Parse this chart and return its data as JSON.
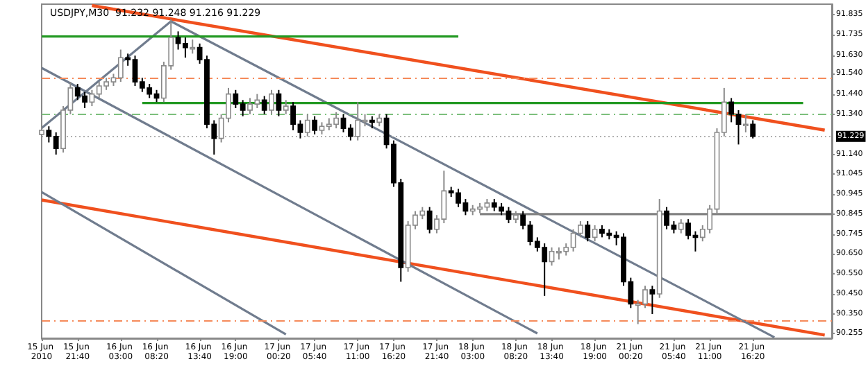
{
  "chart_data": {
    "type": "candlestick",
    "title": "USDJPY,M30  91.232 91.248 91.216 91.229",
    "categories": [
      "15 Jun 2010",
      null,
      null,
      null,
      null,
      "15 Jun 21:40",
      null,
      null,
      null,
      null,
      null,
      "16 Jun 03:00",
      null,
      null,
      null,
      null,
      "16 Jun 08:20",
      null,
      null,
      null,
      null,
      null,
      "16 Jun 13:40",
      null,
      null,
      null,
      null,
      "16 Jun 19:00",
      null,
      null,
      null,
      null,
      null,
      "17 Jun 00:20",
      null,
      null,
      null,
      null,
      "17 Jun 05:40",
      null,
      null,
      null,
      null,
      null,
      "17 Jun 11:00",
      null,
      null,
      null,
      null,
      "17 Jun 16:20",
      null,
      null,
      null,
      null,
      null,
      "17 Jun 21:40",
      null,
      null,
      null,
      null,
      "18 Jun 03:00",
      null,
      null,
      null,
      null,
      null,
      "18 Jun 08:20",
      null,
      null,
      null,
      null,
      "18 Jun 13:40",
      null,
      null,
      null,
      null,
      null,
      "18 Jun 19:00",
      null,
      null,
      null,
      null,
      "21 Jun 00:20",
      null,
      null,
      null,
      null,
      null,
      "21 Jun 05:40",
      null,
      null,
      null,
      null,
      "21 Jun 11:00",
      null,
      null,
      null,
      null,
      null,
      "21 Jun 16:20",
      null,
      null,
      null,
      null,
      null,
      null,
      null,
      null,
      null,
      null,
      null
    ],
    "ohlc": [
      [
        91.24,
        91.28,
        91.22,
        91.26
      ],
      [
        91.26,
        91.28,
        91.2,
        91.23
      ],
      [
        91.23,
        91.25,
        91.14,
        91.17
      ],
      [
        91.17,
        91.38,
        91.15,
        91.36
      ],
      [
        91.36,
        91.5,
        91.34,
        91.47
      ],
      [
        91.47,
        91.49,
        91.41,
        91.43
      ],
      [
        91.43,
        91.45,
        91.37,
        91.4
      ],
      [
        91.4,
        91.46,
        91.38,
        91.44
      ],
      [
        91.44,
        91.5,
        91.42,
        91.48
      ],
      [
        91.48,
        91.52,
        91.46,
        91.5
      ],
      [
        91.5,
        91.54,
        91.48,
        91.52
      ],
      [
        91.52,
        91.66,
        91.5,
        91.62
      ],
      [
        91.62,
        91.64,
        91.58,
        91.61
      ],
      [
        91.61,
        91.63,
        91.48,
        91.5
      ],
      [
        91.5,
        91.52,
        91.45,
        91.47
      ],
      [
        91.47,
        91.49,
        91.42,
        91.44
      ],
      [
        91.44,
        91.46,
        91.4,
        91.42
      ],
      [
        91.42,
        91.6,
        91.4,
        91.58
      ],
      [
        91.58,
        91.81,
        91.56,
        91.72
      ],
      [
        91.72,
        91.75,
        91.66,
        91.69
      ],
      [
        91.69,
        91.72,
        91.62,
        91.67
      ],
      [
        91.67,
        91.71,
        91.64,
        91.67
      ],
      [
        91.67,
        91.69,
        91.59,
        91.61
      ],
      [
        91.61,
        91.63,
        91.27,
        91.29
      ],
      [
        91.29,
        91.31,
        91.14,
        91.22
      ],
      [
        91.22,
        91.34,
        91.2,
        91.32
      ],
      [
        91.32,
        91.47,
        91.3,
        91.44
      ],
      [
        91.44,
        91.46,
        91.37,
        91.39
      ],
      [
        91.39,
        91.41,
        91.33,
        91.36
      ],
      [
        91.36,
        91.42,
        91.34,
        91.39
      ],
      [
        91.39,
        91.44,
        91.37,
        91.41
      ],
      [
        91.41,
        91.43,
        91.34,
        91.36
      ],
      [
        91.36,
        91.46,
        91.34,
        91.44
      ],
      [
        91.44,
        91.46,
        91.33,
        91.36
      ],
      [
        91.36,
        91.41,
        91.34,
        91.38
      ],
      [
        91.38,
        91.4,
        91.26,
        91.29
      ],
      [
        91.29,
        91.31,
        91.22,
        91.25
      ],
      [
        91.25,
        91.34,
        91.23,
        91.31
      ],
      [
        91.31,
        91.33,
        91.24,
        91.26
      ],
      [
        91.26,
        91.3,
        91.24,
        91.28
      ],
      [
        91.28,
        91.32,
        91.26,
        91.29
      ],
      [
        91.29,
        91.35,
        91.27,
        91.32
      ],
      [
        91.32,
        91.34,
        91.25,
        91.27
      ],
      [
        91.27,
        91.29,
        91.21,
        91.23
      ],
      [
        91.23,
        91.4,
        91.21,
        91.31
      ],
      [
        91.31,
        91.34,
        91.28,
        91.31
      ],
      [
        91.31,
        91.33,
        91.27,
        91.3
      ],
      [
        91.3,
        91.34,
        91.28,
        91.32
      ],
      [
        91.32,
        91.34,
        91.17,
        91.19
      ],
      [
        91.19,
        91.21,
        90.98,
        91.0
      ],
      [
        91.0,
        91.02,
        90.51,
        90.58
      ],
      [
        90.58,
        90.81,
        90.56,
        90.79
      ],
      [
        90.79,
        90.86,
        90.77,
        90.84
      ],
      [
        90.84,
        90.88,
        90.82,
        90.86
      ],
      [
        90.86,
        90.88,
        90.75,
        90.77
      ],
      [
        90.77,
        90.84,
        90.75,
        90.82
      ],
      [
        90.82,
        91.06,
        90.8,
        90.96
      ],
      [
        90.96,
        90.98,
        90.93,
        90.95
      ],
      [
        90.95,
        90.97,
        90.88,
        90.9
      ],
      [
        90.9,
        90.92,
        90.84,
        90.86
      ],
      [
        90.86,
        90.89,
        90.84,
        90.87
      ],
      [
        90.87,
        90.9,
        90.85,
        90.88
      ],
      [
        90.88,
        90.92,
        90.86,
        90.9
      ],
      [
        90.9,
        90.92,
        90.86,
        90.88
      ],
      [
        90.88,
        90.9,
        90.84,
        90.86
      ],
      [
        90.86,
        90.88,
        90.8,
        90.82
      ],
      [
        90.82,
        90.86,
        90.8,
        90.84
      ],
      [
        90.84,
        90.86,
        90.77,
        90.79
      ],
      [
        90.79,
        90.81,
        90.69,
        90.71
      ],
      [
        90.71,
        90.73,
        90.66,
        90.68
      ],
      [
        90.68,
        90.7,
        90.44,
        90.61
      ],
      [
        90.61,
        90.68,
        90.59,
        90.66
      ],
      [
        90.66,
        90.68,
        90.62,
        90.66
      ],
      [
        90.66,
        90.7,
        90.64,
        90.68
      ],
      [
        90.68,
        90.77,
        90.66,
        90.75
      ],
      [
        90.75,
        90.81,
        90.73,
        90.79
      ],
      [
        90.79,
        90.81,
        90.71,
        90.73
      ],
      [
        90.73,
        90.79,
        90.71,
        90.77
      ],
      [
        90.77,
        90.79,
        90.73,
        90.75
      ],
      [
        90.75,
        90.77,
        90.72,
        90.74
      ],
      [
        90.74,
        90.76,
        90.69,
        90.73
      ],
      [
        90.73,
        90.75,
        90.49,
        90.51
      ],
      [
        90.51,
        90.53,
        90.38,
        90.4
      ],
      [
        90.4,
        90.42,
        90.3,
        90.4
      ],
      [
        90.4,
        90.49,
        90.38,
        90.47
      ],
      [
        90.47,
        90.49,
        90.35,
        90.45
      ],
      [
        90.45,
        90.92,
        90.43,
        90.86
      ],
      [
        90.86,
        90.88,
        90.77,
        90.79
      ],
      [
        90.79,
        90.81,
        90.75,
        90.77
      ],
      [
        90.77,
        90.82,
        90.75,
        90.8
      ],
      [
        90.8,
        90.82,
        90.72,
        90.74
      ],
      [
        90.74,
        90.76,
        90.66,
        90.73
      ],
      [
        90.73,
        90.79,
        90.71,
        90.77
      ],
      [
        90.77,
        90.89,
        90.75,
        90.87
      ],
      [
        90.87,
        91.27,
        90.85,
        91.25
      ],
      [
        91.25,
        91.47,
        91.23,
        91.4
      ],
      [
        91.4,
        91.42,
        91.3,
        91.34
      ],
      [
        91.34,
        91.36,
        91.19,
        91.29
      ],
      [
        91.29,
        91.34,
        91.25,
        91.29
      ],
      [
        91.29,
        91.31,
        91.22,
        91.23
      ],
      null,
      null,
      null,
      null,
      null,
      null,
      null,
      null,
      null,
      null,
      null
    ],
    "series": [
      {
        "type": "line",
        "color": "#f0501e",
        "values": [
          null,
          null,
          null,
          null,
          null,
          null,
          null,
          91.878,
          null,
          null,
          null,
          null,
          null,
          null,
          null,
          null,
          null,
          null,
          null,
          null,
          null,
          null,
          null,
          null,
          null,
          null,
          null,
          null,
          null,
          null,
          null,
          null,
          null,
          null,
          null,
          null,
          null,
          null,
          null,
          null,
          null,
          null,
          null,
          null,
          null,
          null,
          null,
          null,
          null,
          null,
          null,
          null,
          null,
          null,
          null,
          null,
          null,
          null,
          null,
          null,
          null,
          null,
          null,
          null,
          null,
          null,
          null,
          null,
          null,
          null,
          null,
          null,
          null,
          null,
          null,
          null,
          null,
          null,
          null,
          null,
          null,
          null,
          null,
          null,
          null,
          null,
          null,
          null,
          null,
          null,
          null,
          null,
          null,
          null,
          null,
          null,
          null,
          null,
          null,
          null,
          null,
          null,
          null,
          null,
          null,
          null,
          null,
          null,
          null,
          91.261,
          null
        ]
      },
      {
        "type": "line",
        "color": "#f0501e",
        "values": [
          90.915,
          null,
          null,
          null,
          null,
          null,
          null,
          null,
          null,
          null,
          null,
          null,
          null,
          null,
          null,
          null,
          null,
          null,
          null,
          null,
          null,
          null,
          null,
          null,
          null,
          null,
          null,
          null,
          null,
          null,
          null,
          null,
          null,
          null,
          null,
          null,
          null,
          null,
          null,
          null,
          null,
          null,
          null,
          null,
          null,
          null,
          null,
          null,
          null,
          null,
          null,
          null,
          null,
          null,
          null,
          null,
          null,
          null,
          null,
          null,
          null,
          null,
          null,
          null,
          null,
          null,
          null,
          null,
          null,
          null,
          null,
          null,
          null,
          null,
          null,
          null,
          null,
          null,
          null,
          null,
          null,
          null,
          null,
          null,
          null,
          null,
          null,
          null,
          null,
          null,
          null,
          null,
          null,
          null,
          null,
          null,
          null,
          null,
          null,
          null,
          null,
          null,
          null,
          null,
          null,
          null,
          null,
          null,
          null,
          90.246,
          null
        ]
      },
      {
        "type": "line",
        "color": "#707c8e",
        "values": [
          91.271,
          null,
          null,
          null,
          null,
          null,
          null,
          null,
          null,
          null,
          null,
          null,
          null,
          null,
          null,
          null,
          null,
          null,
          91.8,
          null,
          null,
          null,
          null,
          null,
          null,
          null,
          null,
          null,
          null,
          null,
          null,
          null,
          null,
          null,
          null,
          null,
          null,
          null,
          null,
          null,
          null,
          null,
          null,
          null,
          null,
          null,
          null,
          null,
          null,
          null,
          null,
          null,
          null,
          null,
          null,
          null,
          null,
          null,
          null,
          null,
          null,
          null,
          null,
          null,
          null,
          null,
          null,
          null,
          null,
          null,
          null,
          null,
          null,
          null,
          null,
          null,
          null,
          null,
          null,
          null,
          null,
          null,
          null,
          null,
          null,
          null,
          null,
          null,
          null,
          null,
          null,
          null,
          null,
          null,
          null,
          null,
          null,
          null,
          null,
          null,
          null,
          null,
          null,
          null,
          null,
          null,
          null,
          null,
          null,
          null,
          null
        ]
      },
      {
        "type": "line",
        "color": "#707c8e",
        "values": [
          null,
          null,
          null,
          null,
          null,
          null,
          null,
          null,
          null,
          null,
          null,
          null,
          null,
          null,
          null,
          null,
          null,
          null,
          91.8,
          null,
          null,
          null,
          null,
          null,
          null,
          null,
          null,
          null,
          null,
          null,
          null,
          null,
          null,
          null,
          null,
          null,
          null,
          null,
          null,
          null,
          null,
          null,
          null,
          null,
          null,
          null,
          null,
          null,
          null,
          null,
          null,
          null,
          null,
          null,
          null,
          null,
          null,
          null,
          null,
          null,
          null,
          null,
          null,
          null,
          null,
          null,
          null,
          null,
          null,
          null,
          null,
          null,
          null,
          null,
          null,
          null,
          null,
          null,
          null,
          null,
          null,
          null,
          null,
          null,
          null,
          null,
          null,
          null,
          null,
          null,
          null,
          null,
          null,
          null,
          null,
          null,
          null,
          null,
          null,
          null,
          null,
          null,
          90.235,
          null,
          null,
          null,
          null,
          null,
          null,
          null,
          null
        ]
      },
      {
        "type": "line",
        "color": "#707c8e",
        "values": [
          91.569,
          null,
          null,
          null,
          null,
          null,
          null,
          null,
          null,
          null,
          null,
          null,
          null,
          null,
          null,
          null,
          null,
          null,
          null,
          null,
          null,
          null,
          null,
          null,
          null,
          null,
          null,
          null,
          null,
          null,
          null,
          null,
          null,
          null,
          null,
          null,
          null,
          null,
          null,
          null,
          null,
          null,
          null,
          null,
          null,
          null,
          null,
          null,
          null,
          null,
          null,
          null,
          null,
          null,
          null,
          null,
          null,
          null,
          null,
          null,
          null,
          null,
          null,
          null,
          null,
          null,
          null,
          null,
          null,
          90.254,
          null,
          null,
          null,
          null,
          null,
          null,
          null,
          null,
          null,
          null,
          null,
          null,
          null,
          null,
          null,
          null,
          null,
          null,
          null,
          null,
          null,
          null,
          null,
          null,
          null,
          null,
          null,
          null,
          null,
          null,
          null,
          null,
          null,
          null,
          null,
          null,
          null,
          null,
          null,
          null,
          null
        ]
      },
      {
        "type": "line",
        "color": "#707c8e",
        "values": [
          90.954,
          null,
          null,
          null,
          null,
          null,
          null,
          null,
          null,
          null,
          null,
          null,
          null,
          null,
          null,
          null,
          null,
          null,
          null,
          null,
          null,
          null,
          null,
          null,
          null,
          null,
          null,
          null,
          null,
          null,
          null,
          null,
          null,
          null,
          90.249,
          null,
          null,
          null,
          null,
          null,
          null,
          null,
          null,
          null,
          null,
          null,
          null,
          null,
          null,
          null,
          null,
          null,
          null,
          null,
          null,
          null,
          null,
          null,
          null,
          null,
          null,
          null,
          null,
          null,
          null,
          null,
          null,
          null,
          null,
          null,
          null,
          null,
          null,
          null,
          null,
          null,
          null,
          null,
          null,
          null,
          null,
          null,
          null,
          null,
          null,
          null,
          null,
          null,
          null,
          null,
          null,
          null,
          null,
          null,
          null,
          null,
          null,
          null,
          null,
          null,
          null,
          null,
          null,
          null,
          null,
          null,
          null,
          null,
          null,
          null,
          null
        ]
      },
      {
        "type": "line",
        "color": "#229922",
        "values": [
          91.725,
          null,
          null,
          null,
          null,
          null,
          null,
          null,
          null,
          null,
          null,
          null,
          null,
          null,
          null,
          null,
          null,
          null,
          null,
          null,
          null,
          null,
          null,
          null,
          null,
          null,
          null,
          null,
          null,
          null,
          null,
          null,
          null,
          null,
          null,
          null,
          null,
          null,
          null,
          null,
          null,
          null,
          null,
          null,
          null,
          null,
          null,
          null,
          null,
          null,
          null,
          null,
          null,
          null,
          null,
          null,
          null,
          null,
          91.725,
          null,
          null,
          null,
          null,
          null,
          null,
          null,
          null,
          null,
          null,
          null,
          null,
          null,
          null,
          null,
          null,
          null,
          null,
          null,
          null,
          null,
          null,
          null,
          null,
          null,
          null,
          null,
          null,
          null,
          null,
          null,
          null,
          null,
          null,
          null,
          null,
          null,
          null,
          null,
          null,
          null,
          null,
          null,
          null,
          null,
          null,
          null,
          null,
          null,
          null,
          null,
          null
        ]
      },
      {
        "type": "line",
        "color": "#229922",
        "values": [
          null,
          null,
          null,
          null,
          null,
          null,
          null,
          null,
          null,
          null,
          null,
          null,
          null,
          null,
          91.395,
          null,
          null,
          null,
          null,
          null,
          null,
          null,
          null,
          null,
          null,
          null,
          null,
          null,
          null,
          null,
          null,
          null,
          null,
          null,
          null,
          null,
          null,
          null,
          null,
          null,
          null,
          null,
          null,
          null,
          null,
          null,
          null,
          null,
          null,
          null,
          null,
          null,
          null,
          null,
          null,
          null,
          null,
          null,
          null,
          null,
          null,
          null,
          null,
          null,
          null,
          null,
          null,
          null,
          null,
          null,
          null,
          null,
          null,
          null,
          null,
          null,
          null,
          null,
          null,
          null,
          null,
          null,
          null,
          null,
          null,
          null,
          null,
          null,
          null,
          null,
          null,
          null,
          null,
          null,
          null,
          null,
          null,
          null,
          null,
          null,
          null,
          null,
          null,
          null,
          null,
          null,
          91.395,
          null,
          null,
          null,
          null
        ]
      },
      {
        "type": "line",
        "color": "#808080",
        "values": [
          null,
          null,
          null,
          null,
          null,
          null,
          null,
          null,
          null,
          null,
          null,
          null,
          null,
          null,
          null,
          null,
          null,
          null,
          null,
          null,
          null,
          null,
          null,
          null,
          null,
          null,
          null,
          null,
          null,
          null,
          null,
          null,
          null,
          null,
          null,
          null,
          null,
          null,
          null,
          null,
          null,
          null,
          null,
          null,
          null,
          null,
          null,
          null,
          null,
          null,
          null,
          null,
          null,
          null,
          null,
          null,
          null,
          null,
          null,
          null,
          null,
          90.845,
          null,
          null,
          null,
          null,
          null,
          null,
          null,
          null,
          null,
          null,
          null,
          null,
          null,
          null,
          null,
          null,
          null,
          null,
          null,
          null,
          null,
          null,
          null,
          null,
          null,
          null,
          null,
          null,
          null,
          null,
          null,
          null,
          null,
          null,
          null,
          null,
          null,
          null,
          null,
          null,
          null,
          null,
          null,
          null,
          null,
          null,
          null,
          null,
          90.845
        ]
      }
    ],
    "ref_lines": [
      {
        "axis": "y",
        "value": 91.52,
        "color": "#f58a5a",
        "line_style": "dashed"
      },
      {
        "axis": "y",
        "value": 91.34,
        "color": "#7cbf7c",
        "line_style": "dashed"
      },
      {
        "axis": "y",
        "value": 91.229,
        "label": "91.229",
        "color": "#b0b0b0",
        "line_style": "dotted"
      },
      {
        "axis": "y",
        "value": 90.32,
        "color": "#f58a5a",
        "line_style": "dashed"
      }
    ],
    "ylim": [
      90.23,
      91.885
    ],
    "yticks": [
      91.835,
      91.735,
      {
        "value": 91.63,
        "label": "91.630"
      },
      {
        "value": 91.54,
        "label": "91.540"
      },
      {
        "value": 91.44,
        "label": "91.440"
      },
      {
        "value": 91.34,
        "label": "91.340"
      },
      {
        "value": 91.14,
        "label": "91.140"
      },
      91.045,
      90.945,
      90.845,
      90.745,
      {
        "value": 90.65,
        "label": "90.650"
      },
      {
        "value": 90.55,
        "label": "90.550"
      },
      {
        "value": 90.45,
        "label": "90.450"
      },
      {
        "value": 90.35,
        "label": "90.350"
      },
      90.255
    ]
  }
}
